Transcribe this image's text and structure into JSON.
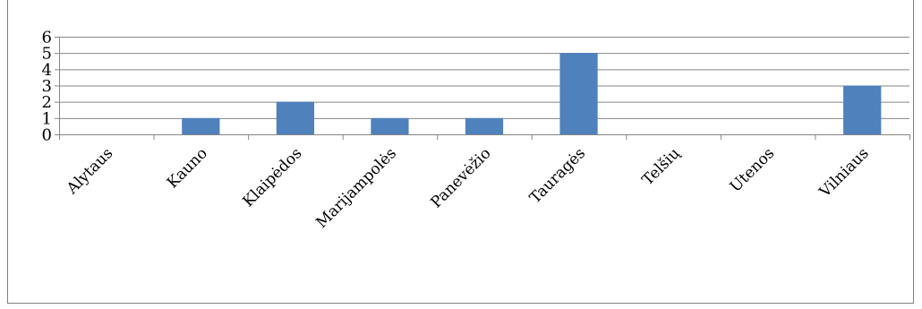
{
  "chart_data": {
    "type": "bar",
    "title": "",
    "xlabel": "",
    "ylabel": "",
    "categories": [
      "Alytaus",
      "Kauno",
      "Klaipėdos",
      "Marijampolės",
      "Panevėžio",
      "Tauragės",
      "Telšių",
      "Utenos",
      "Vilniaus"
    ],
    "values": [
      0,
      1,
      2,
      1,
      1,
      5,
      0,
      0,
      3
    ],
    "ylim": [
      0,
      6
    ],
    "yticks": [
      "0",
      "1",
      "2",
      "3",
      "4",
      "5",
      "6"
    ],
    "grid": true,
    "legend": "none",
    "bar_color": "#4f81bd",
    "grid_color": "#868686"
  }
}
